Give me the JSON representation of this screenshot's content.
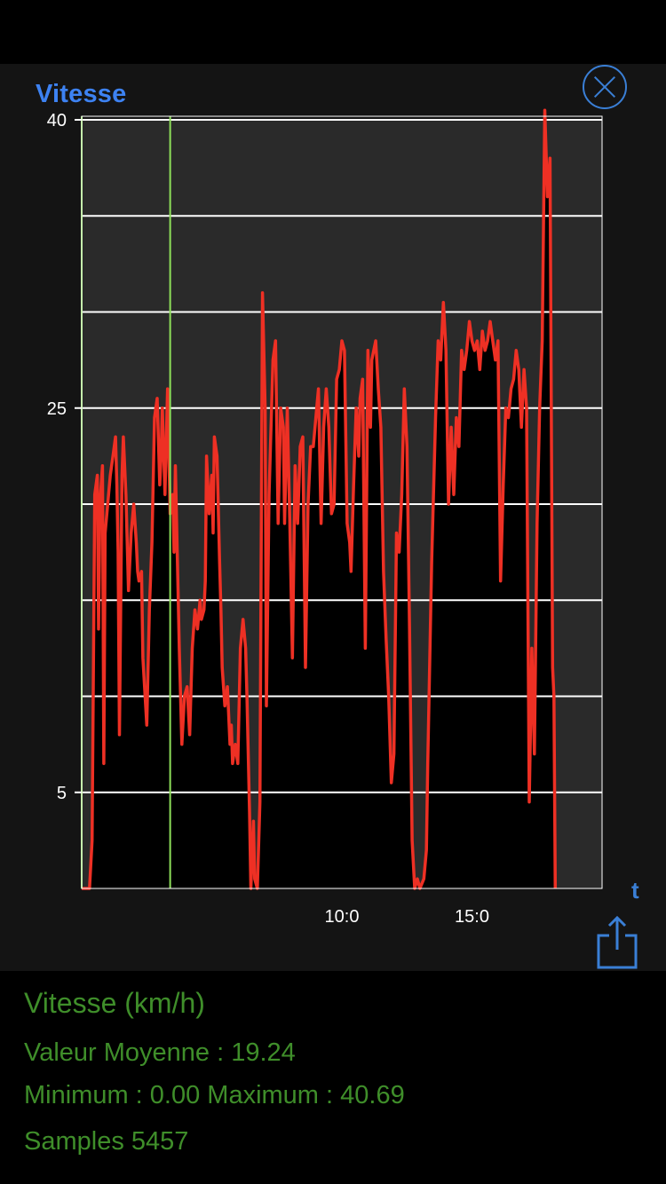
{
  "header": {
    "title": "Vitesse"
  },
  "icons": {
    "close": "close-circle-icon",
    "share": "share-icon"
  },
  "chart_data": {
    "type": "line",
    "title": "Vitesse",
    "xlabel": "t",
    "ylabel": "",
    "ylim": [
      0,
      40
    ],
    "y_ticks": [
      5,
      25,
      40
    ],
    "y_tick_labels": [
      "5",
      "25",
      "40"
    ],
    "gridlines_y": [
      5,
      10,
      15,
      20,
      25,
      30,
      35,
      40
    ],
    "x_range": [
      0,
      20
    ],
    "x_ticks": [
      10,
      15
    ],
    "x_tick_labels": [
      "10:0",
      "15:0"
    ],
    "cursor_x": 3.4,
    "grid": true,
    "series": [
      {
        "color": "#ee3024",
        "fill": "#000000",
        "points": [
          [
            0.0,
            0.0
          ],
          [
            0.3,
            0.0
          ],
          [
            0.4,
            2.5
          ],
          [
            0.5,
            20.5
          ],
          [
            0.6,
            21.5
          ],
          [
            0.65,
            13.5
          ],
          [
            0.7,
            20.0
          ],
          [
            0.8,
            22.0
          ],
          [
            0.85,
            6.5
          ],
          [
            0.9,
            18.5
          ],
          [
            1.0,
            20.0
          ],
          [
            1.1,
            21.5
          ],
          [
            1.2,
            22.5
          ],
          [
            1.3,
            23.5
          ],
          [
            1.35,
            21.0
          ],
          [
            1.4,
            17.5
          ],
          [
            1.45,
            8.0
          ],
          [
            1.55,
            21.5
          ],
          [
            1.6,
            23.5
          ],
          [
            1.7,
            20.5
          ],
          [
            1.8,
            15.5
          ],
          [
            1.9,
            18.5
          ],
          [
            2.0,
            20.0
          ],
          [
            2.1,
            18.0
          ],
          [
            2.15,
            16.5
          ],
          [
            2.2,
            16.0
          ],
          [
            2.3,
            16.5
          ],
          [
            2.35,
            12.0
          ],
          [
            2.5,
            8.5
          ],
          [
            2.6,
            14.5
          ],
          [
            2.7,
            18.0
          ],
          [
            2.8,
            24.5
          ],
          [
            2.9,
            25.5
          ],
          [
            3.0,
            21.0
          ],
          [
            3.05,
            22.5
          ],
          [
            3.1,
            25.0
          ],
          [
            3.2,
            20.5
          ],
          [
            3.3,
            26.0
          ],
          [
            3.4,
            19.5
          ],
          [
            3.5,
            20.5
          ],
          [
            3.55,
            17.5
          ],
          [
            3.6,
            22.0
          ],
          [
            3.75,
            12.5
          ],
          [
            3.85,
            7.5
          ],
          [
            3.95,
            10.0
          ],
          [
            4.05,
            10.5
          ],
          [
            4.15,
            8.0
          ],
          [
            4.25,
            12.5
          ],
          [
            4.35,
            14.5
          ],
          [
            4.45,
            13.5
          ],
          [
            4.55,
            15.0
          ],
          [
            4.6,
            14.0
          ],
          [
            4.7,
            14.5
          ],
          [
            4.75,
            16.0
          ],
          [
            4.8,
            22.5
          ],
          [
            4.9,
            19.5
          ],
          [
            5.0,
            21.5
          ],
          [
            5.05,
            18.5
          ],
          [
            5.1,
            23.5
          ],
          [
            5.2,
            22.5
          ],
          [
            5.3,
            17.0
          ],
          [
            5.35,
            14.5
          ],
          [
            5.4,
            11.5
          ],
          [
            5.5,
            9.5
          ],
          [
            5.6,
            10.5
          ],
          [
            5.7,
            7.5
          ],
          [
            5.75,
            8.5
          ],
          [
            5.8,
            6.5
          ],
          [
            5.9,
            7.5
          ],
          [
            6.0,
            6.5
          ],
          [
            6.1,
            12.5
          ],
          [
            6.2,
            14.0
          ],
          [
            6.3,
            12.5
          ],
          [
            6.35,
            10.0
          ],
          [
            6.45,
            4.0
          ],
          [
            6.5,
            0.0
          ],
          [
            6.6,
            3.5
          ],
          [
            6.65,
            0.5
          ],
          [
            6.75,
            0.0
          ],
          [
            6.85,
            4.5
          ],
          [
            6.95,
            31.0
          ],
          [
            7.05,
            25.0
          ],
          [
            7.1,
            9.5
          ],
          [
            7.2,
            20.5
          ],
          [
            7.35,
            27.5
          ],
          [
            7.45,
            28.5
          ],
          [
            7.55,
            19.0
          ],
          [
            7.65,
            25.0
          ],
          [
            7.75,
            24.0
          ],
          [
            7.8,
            19.0
          ],
          [
            7.9,
            25.0
          ],
          [
            8.0,
            19.0
          ],
          [
            8.1,
            12.0
          ],
          [
            8.2,
            22.0
          ],
          [
            8.3,
            19.0
          ],
          [
            8.4,
            23.0
          ],
          [
            8.5,
            23.5
          ],
          [
            8.6,
            11.5
          ],
          [
            8.7,
            20.0
          ],
          [
            8.8,
            23.0
          ],
          [
            8.9,
            23.0
          ],
          [
            9.0,
            24.5
          ],
          [
            9.1,
            26.0
          ],
          [
            9.2,
            19.0
          ],
          [
            9.3,
            24.0
          ],
          [
            9.4,
            26.0
          ],
          [
            9.5,
            24.0
          ],
          [
            9.6,
            19.5
          ],
          [
            9.7,
            20.0
          ],
          [
            9.8,
            26.5
          ],
          [
            9.9,
            27.0
          ],
          [
            10.0,
            28.5
          ],
          [
            10.1,
            28.0
          ],
          [
            10.2,
            19.0
          ],
          [
            10.3,
            18.0
          ],
          [
            10.35,
            16.5
          ],
          [
            10.45,
            21.0
          ],
          [
            10.55,
            25.0
          ],
          [
            10.65,
            22.5
          ],
          [
            10.7,
            25.5
          ],
          [
            10.8,
            26.5
          ],
          [
            10.9,
            12.5
          ],
          [
            11.0,
            28.0
          ],
          [
            11.1,
            24.0
          ],
          [
            11.15,
            27.5
          ],
          [
            11.3,
            28.5
          ],
          [
            11.4,
            26.0
          ],
          [
            11.5,
            24.0
          ],
          [
            11.6,
            16.5
          ],
          [
            11.7,
            13.0
          ],
          [
            11.8,
            10.0
          ],
          [
            11.9,
            5.5
          ],
          [
            12.0,
            7.0
          ],
          [
            12.1,
            18.5
          ],
          [
            12.2,
            17.5
          ],
          [
            12.3,
            20.5
          ],
          [
            12.4,
            26.0
          ],
          [
            12.5,
            23.0
          ],
          [
            12.6,
            13.5
          ],
          [
            12.7,
            2.5
          ],
          [
            12.8,
            0.0
          ],
          [
            12.9,
            0.5
          ],
          [
            13.0,
            0.0
          ],
          [
            13.15,
            0.5
          ],
          [
            13.25,
            2.0
          ],
          [
            13.3,
            6.5
          ],
          [
            13.45,
            17.0
          ],
          [
            13.6,
            24.5
          ],
          [
            13.7,
            28.5
          ],
          [
            13.8,
            27.5
          ],
          [
            13.9,
            30.5
          ],
          [
            14.0,
            28.0
          ],
          [
            14.1,
            20.0
          ],
          [
            14.2,
            24.0
          ],
          [
            14.3,
            20.5
          ],
          [
            14.4,
            24.5
          ],
          [
            14.5,
            23.0
          ],
          [
            14.6,
            28.0
          ],
          [
            14.7,
            27.0
          ],
          [
            14.8,
            28.0
          ],
          [
            14.9,
            29.5
          ],
          [
            15.0,
            28.5
          ],
          [
            15.1,
            28.0
          ],
          [
            15.2,
            28.5
          ],
          [
            15.3,
            27.0
          ],
          [
            15.4,
            29.0
          ],
          [
            15.5,
            28.0
          ],
          [
            15.6,
            28.5
          ],
          [
            15.7,
            29.5
          ],
          [
            15.8,
            28.5
          ],
          [
            15.9,
            27.5
          ],
          [
            16.0,
            28.5
          ],
          [
            16.1,
            16.0
          ],
          [
            16.2,
            21.0
          ],
          [
            16.3,
            25.0
          ],
          [
            16.4,
            24.5
          ],
          [
            16.5,
            26.0
          ],
          [
            16.6,
            26.5
          ],
          [
            16.7,
            28.0
          ],
          [
            16.8,
            27.0
          ],
          [
            16.9,
            24.0
          ],
          [
            17.0,
            27.0
          ],
          [
            17.1,
            25.0
          ],
          [
            17.2,
            4.5
          ],
          [
            17.3,
            12.5
          ],
          [
            17.4,
            7.0
          ],
          [
            17.5,
            19.0
          ],
          [
            17.6,
            25.0
          ],
          [
            17.7,
            28.5
          ],
          [
            17.8,
            40.5
          ],
          [
            17.9,
            36.0
          ],
          [
            18.0,
            38.0
          ],
          [
            18.1,
            11.5
          ],
          [
            18.15,
            10.0
          ],
          [
            18.2,
            0.0
          ]
        ]
      }
    ]
  },
  "stats": {
    "title": "Vitesse (km/h)",
    "average": "Valeur Moyenne : 19.24",
    "minmax": "Minimum : 0.00 Maximum : 40.69",
    "samples": "Samples 5457"
  }
}
